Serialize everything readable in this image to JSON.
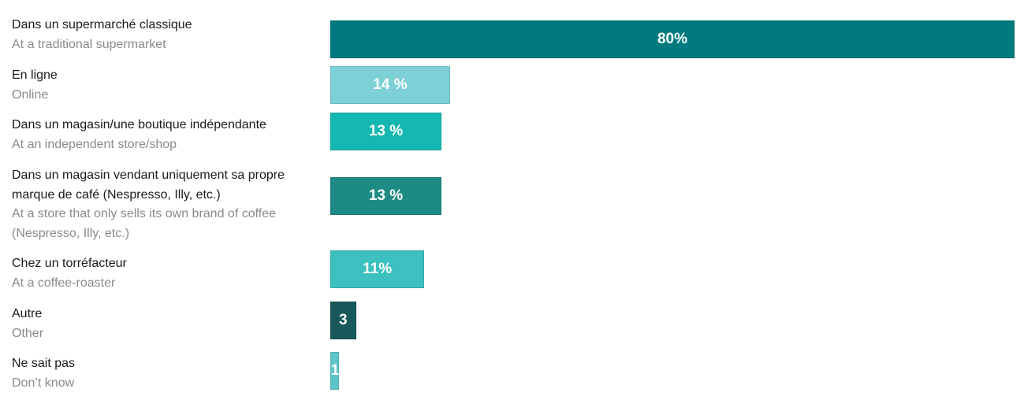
{
  "chart_data": {
    "type": "bar",
    "orientation": "horizontal",
    "categories": [
      "Dans un supermarché classique",
      "En ligne",
      "Dans un magasin/une boutique indépendante",
      "Dans un magasin vendant uniquement sa propre marque de café (Nespresso, Illy, etc.)",
      "Chez un torréfacteur",
      "Autre",
      "Ne sait pas"
    ],
    "subcategories": [
      "At a traditional supermarket",
      "Online",
      "At an independent store/shop",
      "At a store that only sells its own brand of coffee (Nespresso, Illy, etc.)",
      "At a coffee-roaster",
      "Other",
      "Don’t know"
    ],
    "values": [
      80,
      14,
      13,
      13,
      11,
      3,
      1
    ],
    "value_labels": [
      "80%",
      "14 %",
      "13 %",
      "13 %",
      "11%",
      "3",
      "1"
    ],
    "colors": [
      "#007a7e",
      "#7dd0d6",
      "#14b8b0",
      "#1e8a85",
      "#3cc0c0",
      "#17595a",
      "#5ec4c8"
    ]
  }
}
